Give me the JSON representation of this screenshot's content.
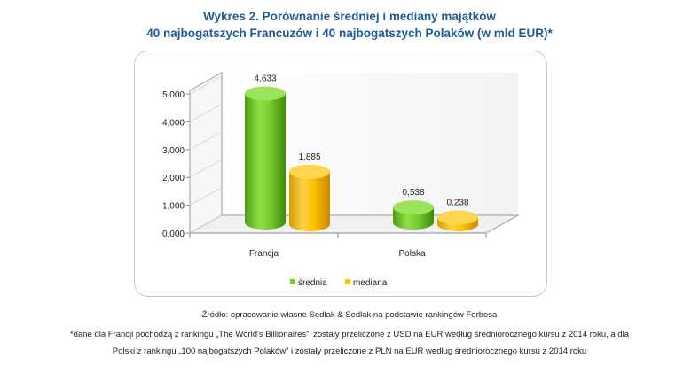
{
  "title_line1": "Wykres 2. Porównanie średniej i mediany majątków",
  "title_line2": "40 najbogatszych Francuzów i 40 najbogatszych Polaków (w mld EUR)*",
  "source": "Źródło: opracowanie własne Sedlak & Sedlak na podstawie rankingów Forbesa",
  "footnote_line1": "*dane dla Francji pochodzą z rankingu „The World's Billionaires”i zostały przeliczone z USD na EUR według średniorocznego kursu z 2014 roku, a dla",
  "footnote_line2": "Polski z rankingu „100 najbogatszych Polaków” i zostały przeliczone z PLN na EUR według średniorocznego kursu z 2014 roku",
  "colors": {
    "green": "#7acc2e",
    "orange": "#ffc000",
    "title": "#1f5a94"
  },
  "chart_data": {
    "type": "bar",
    "categories": [
      "Francja",
      "Polska"
    ],
    "series": [
      {
        "name": "średnia",
        "values": [
          4.633,
          0.538
        ],
        "labels": [
          "4,633",
          "0,538"
        ]
      },
      {
        "name": "mediana",
        "values": [
          1.885,
          0.238
        ],
        "labels": [
          "1,885",
          "0,238"
        ]
      }
    ],
    "ylim": [
      0,
      5
    ],
    "yticks": [
      "0,000",
      "1,000",
      "2,000",
      "3,000",
      "4,000",
      "5,000"
    ],
    "legend": "bottom",
    "grid": false
  }
}
